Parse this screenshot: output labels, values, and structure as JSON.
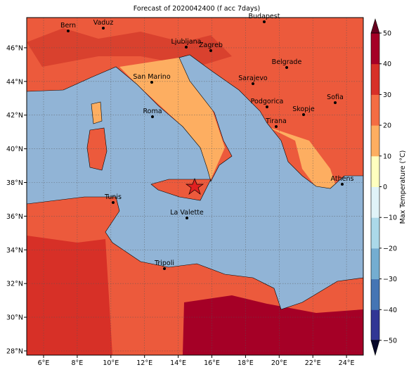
{
  "title": "Forecast of 2020042400 (f acc 7days)",
  "lon_ticks": [
    "6°E",
    "8°E",
    "10°E",
    "12°E",
    "14°E",
    "16°E",
    "18°E",
    "20°E",
    "22°E",
    "24°E"
  ],
  "lat_ticks": [
    "28°N",
    "30°N",
    "32°N",
    "34°N",
    "36°N",
    "38°N",
    "40°N",
    "42°N",
    "44°N",
    "46°N"
  ],
  "cities": [
    "Bern",
    "Vaduz",
    "Budapest",
    "Ljubljana",
    "Zagreb",
    "Belgrade",
    "San Marino",
    "Sarajevo",
    "Sofia",
    "Roma",
    "Podgorica",
    "Skopje",
    "Tirana",
    "Athens",
    "Tunis",
    "La Valette",
    "Tripoli"
  ],
  "colorbar": {
    "label": "Max Temperature (°C)",
    "ticks": [
      "−50",
      "−40",
      "−30",
      "−20",
      "−10",
      "0",
      "10",
      "20",
      "30",
      "40",
      "50"
    ]
  }
}
